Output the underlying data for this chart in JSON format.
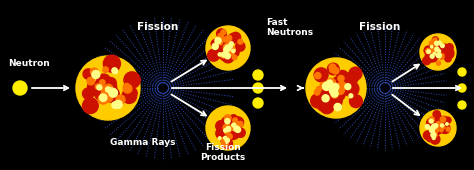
{
  "bg_color": "#000000",
  "text_color": "#ffffff",
  "arrow_color": "#ffffff",
  "ray_color": "#3355cc",
  "nucleus_colors": {
    "outer": "#ffcc00",
    "inner": "#cc1100",
    "spot": "#ff7700"
  },
  "neutron_color": "#ffee00",
  "fig_width": 4.74,
  "fig_height": 1.7,
  "dpi": 100,
  "labels": {
    "neutron": "Neutron",
    "fission1": "Fission",
    "fission2": "Fission",
    "gamma": "Gamma Rays",
    "fast_neutrons": "Fast\nNeutrons",
    "fission_products": "Fission\nProducts"
  }
}
